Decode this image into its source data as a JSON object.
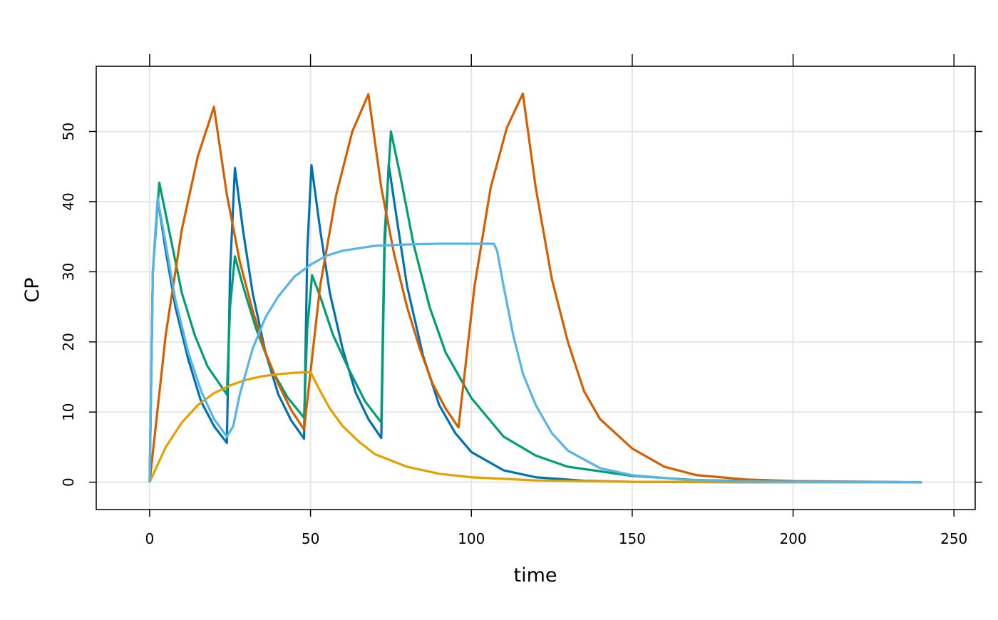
{
  "chart_data": {
    "type": "line",
    "x_label": "time",
    "y_label": "CP",
    "xlim": [
      -16.6,
      256.6
    ],
    "ylim": [
      -3.9,
      59.3
    ],
    "xticks": [
      0,
      50,
      100,
      150,
      200,
      250
    ],
    "yticks": [
      0,
      10,
      20,
      30,
      40,
      50
    ],
    "grid": true,
    "series": [
      {
        "color": "#0072B2",
        "x": [
          0,
          1,
          2.5,
          5,
          8,
          12,
          16,
          20,
          24,
          25,
          26.5,
          29,
          32,
          36,
          40,
          44,
          48,
          49,
          50.3,
          53,
          56,
          60,
          64,
          68,
          72,
          73,
          74.3,
          77,
          80,
          85,
          90,
          95,
          100,
          110,
          120,
          135,
          150,
          180,
          240
        ],
        "values": [
          0,
          30,
          40.5,
          33,
          25,
          17.5,
          11.5,
          8,
          5.6,
          30,
          44.8,
          36,
          27,
          18.5,
          12.5,
          8.8,
          6.2,
          33,
          45.2,
          36,
          27,
          19,
          12.8,
          9,
          6.3,
          33,
          45.3,
          37,
          28,
          18,
          11,
          7,
          4.3,
          1.7,
          0.7,
          0.2,
          0.05,
          0,
          0
        ]
      },
      {
        "color": "#009E73",
        "x": [
          0,
          1,
          3,
          6,
          10,
          14,
          18,
          24,
          25,
          26.5,
          29,
          33,
          38,
          43,
          48,
          49,
          50.5,
          53,
          57,
          62,
          67,
          72,
          73,
          75,
          78,
          82,
          87,
          92,
          100,
          110,
          120,
          130,
          150,
          170,
          200,
          240
        ],
        "values": [
          0,
          30,
          42.7,
          36,
          27,
          21,
          16.5,
          12.5,
          25,
          32.2,
          28,
          22,
          16,
          12,
          9.2,
          22,
          29.5,
          26.5,
          21,
          16,
          11.5,
          8.5,
          35,
          50,
          43.5,
          34,
          25,
          18.5,
          12,
          6.5,
          3.8,
          2.2,
          0.9,
          0.3,
          0.05,
          0
        ]
      },
      {
        "color": "#D55E00",
        "x": [
          0,
          5,
          10,
          15,
          20,
          24,
          28,
          32,
          36,
          40,
          44,
          48,
          53,
          58,
          63,
          68,
          72,
          76,
          80,
          84,
          88,
          92,
          96,
          101,
          106,
          111,
          116,
          120,
          125,
          130,
          135,
          140,
          150,
          160,
          170,
          185,
          200,
          240
        ],
        "values": [
          0,
          21,
          36,
          46.5,
          53.5,
          41,
          31.5,
          24.5,
          18.5,
          14,
          10.3,
          7.5,
          28,
          41,
          50,
          55.3,
          42,
          32.5,
          25,
          19,
          14,
          10.5,
          7.8,
          28,
          42,
          50.5,
          55.4,
          42,
          29,
          20,
          13,
          9,
          4.8,
          2.2,
          1,
          0.4,
          0.15,
          0
        ]
      },
      {
        "color": "#E69F00",
        "x": [
          0,
          5,
          10,
          15,
          20,
          25,
          30,
          35,
          40,
          45,
          50,
          53,
          56,
          60,
          65,
          70,
          80,
          90,
          100,
          120,
          150,
          240
        ],
        "values": [
          0,
          5,
          8.5,
          11,
          12.7,
          13.8,
          14.6,
          15.1,
          15.4,
          15.6,
          15.7,
          13,
          10.5,
          8,
          5.8,
          4,
          2.2,
          1.2,
          0.7,
          0.25,
          0.05,
          0
        ]
      },
      {
        "color": "#56B4E9",
        "x": [
          0,
          1,
          2.5,
          5,
          8,
          12,
          16,
          20,
          24,
          26,
          28,
          32,
          36,
          40,
          45,
          50,
          55,
          60,
          70,
          80,
          90,
          107,
          108,
          110,
          113,
          116,
          120,
          125,
          130,
          140,
          150,
          165,
          180,
          200,
          240
        ],
        "values": [
          0,
          30,
          40.5,
          34,
          26,
          18.5,
          13,
          9,
          6.5,
          8,
          12.5,
          19,
          23.5,
          26.5,
          29.3,
          31,
          32.3,
          33,
          33.7,
          33.9,
          34,
          34,
          33,
          28,
          21,
          15.5,
          11,
          7,
          4.5,
          2,
          1,
          0.4,
          0.15,
          0.05,
          0
        ]
      }
    ]
  }
}
